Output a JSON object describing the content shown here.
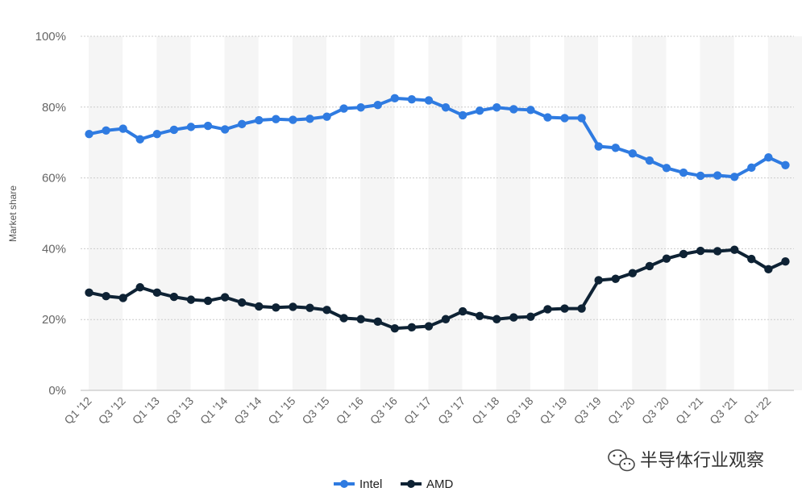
{
  "chart_data": {
    "type": "line",
    "ylabel": "Market share",
    "ylim": [
      0,
      100
    ],
    "yticks": [
      "0%",
      "20%",
      "40%",
      "60%",
      "80%",
      "100%"
    ],
    "grid": true,
    "legend_position": "bottom-center",
    "x": [
      "Q1 '12",
      "Q2 '12",
      "Q3 '12",
      "Q4 '12",
      "Q1 '13",
      "Q2 '13",
      "Q3 '13",
      "Q4 '13",
      "Q1 '14",
      "Q2 '14",
      "Q3 '14",
      "Q4 '14",
      "Q1 '15",
      "Q2 '15",
      "Q3 '15",
      "Q4 '15",
      "Q1 '16",
      "Q2 '16",
      "Q3 '16",
      "Q4 '16",
      "Q1 '17",
      "Q2 '17",
      "Q3 '17",
      "Q4 '17",
      "Q1 '18",
      "Q2 '18",
      "Q3 '18",
      "Q4 '18",
      "Q1 '19",
      "Q2 '19",
      "Q3 '19",
      "Q4 '19",
      "Q1 '20",
      "Q2 '20",
      "Q3 '20",
      "Q4 '20",
      "Q1 '21",
      "Q2 '21",
      "Q3 '21",
      "Q4 '21",
      "Q1 '22",
      "Q2 '22"
    ],
    "xticks": [
      "Q1 '12",
      "Q3 '12",
      "Q1 '13",
      "Q3 '13",
      "Q1 '14",
      "Q3 '14",
      "Q1 '15",
      "Q3 '15",
      "Q1 '16",
      "Q3 '16",
      "Q1 '17",
      "Q3 '17",
      "Q1 '18",
      "Q3 '18",
      "Q1 '19",
      "Q3 '19",
      "Q1 '20",
      "Q3 '20",
      "Q1 '21",
      "Q3 '21",
      "Q1 '22"
    ],
    "series": [
      {
        "name": "Intel",
        "color": "#2f7be1",
        "values": [
          72.4,
          73.4,
          73.9,
          70.9,
          72.4,
          73.6,
          74.4,
          74.7,
          73.7,
          75.2,
          76.3,
          76.6,
          76.4,
          76.7,
          77.3,
          79.6,
          79.9,
          80.6,
          82.5,
          82.2,
          81.9,
          79.9,
          77.7,
          79.0,
          79.9,
          79.4,
          79.2,
          77.1,
          76.9,
          76.9,
          68.9,
          68.5,
          66.9,
          64.9,
          62.8,
          61.5,
          60.6,
          60.7,
          60.3,
          62.9,
          65.8,
          63.6
        ]
      },
      {
        "name": "AMD",
        "color": "#0e2234",
        "values": [
          27.6,
          26.6,
          26.1,
          29.1,
          27.6,
          26.4,
          25.6,
          25.3,
          26.3,
          24.8,
          23.7,
          23.4,
          23.6,
          23.3,
          22.7,
          20.4,
          20.1,
          19.4,
          17.5,
          17.8,
          18.1,
          20.1,
          22.3,
          21.0,
          20.1,
          20.6,
          20.8,
          22.9,
          23.1,
          23.1,
          31.1,
          31.5,
          33.1,
          35.1,
          37.2,
          38.5,
          39.4,
          39.3,
          39.7,
          37.1,
          34.2,
          36.4
        ]
      }
    ]
  },
  "watermark": {
    "icon": "wechat-icon",
    "text": "半导体行业观察"
  }
}
